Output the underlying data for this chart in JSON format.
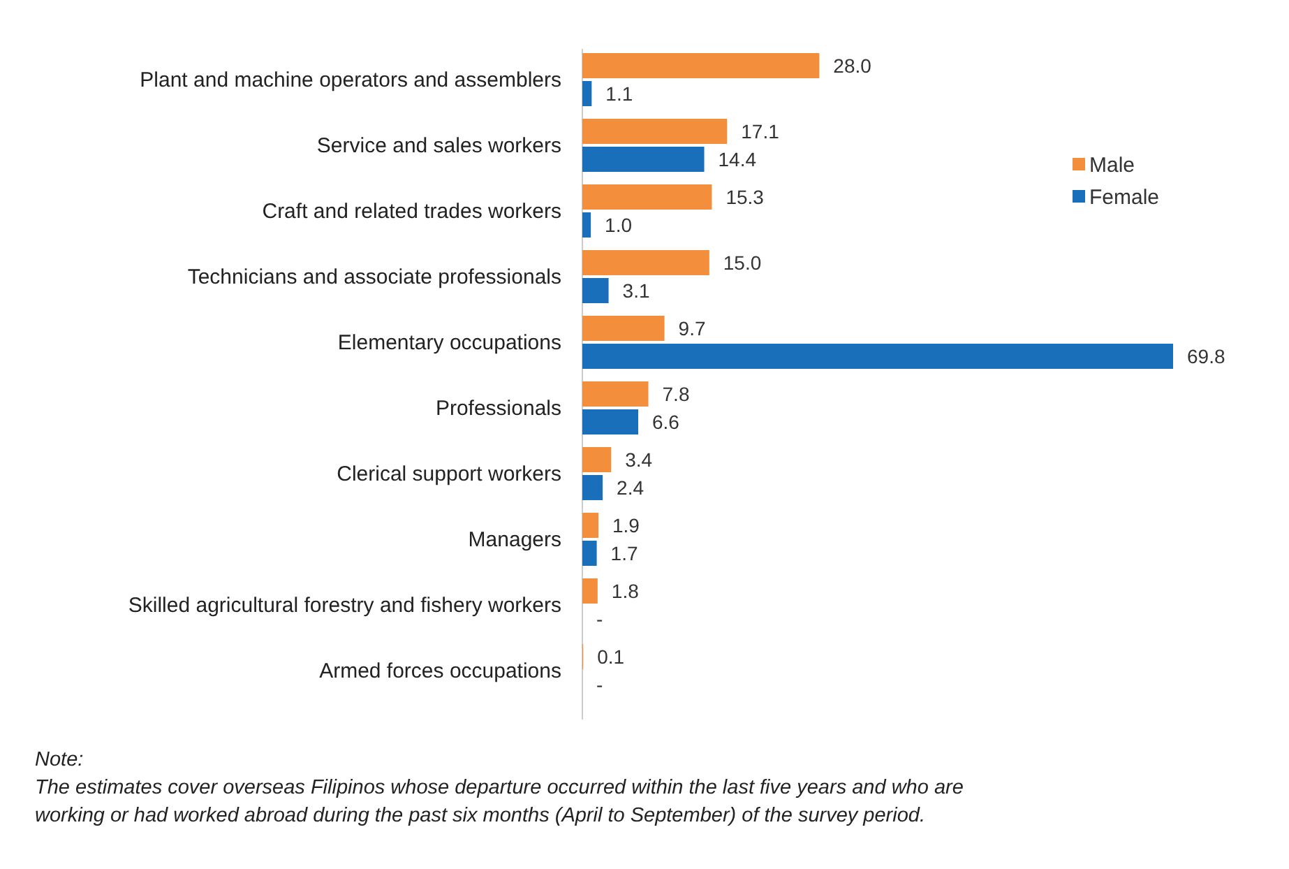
{
  "chart_data": {
    "type": "bar",
    "orientation": "horizontal",
    "categories": [
      "Plant and machine operators and assemblers",
      "Service and sales workers",
      "Craft and related trades workers",
      "Technicians and associate professionals",
      "Elementary occupations",
      "Professionals",
      "Clerical support workers",
      "Managers",
      "Skilled agricultural forestry and fishery workers",
      "Armed forces occupations"
    ],
    "series": [
      {
        "name": "Male",
        "color": "#f28e3c",
        "values": [
          28.0,
          17.1,
          15.3,
          15.0,
          9.7,
          7.8,
          3.4,
          1.9,
          1.8,
          0.1
        ],
        "value_labels": [
          "28.0",
          "17.1",
          "15.3",
          "15.0",
          "9.7",
          "7.8",
          "3.4",
          "1.9",
          "1.8",
          "0.1"
        ]
      },
      {
        "name": "Female",
        "color": "#1a6fba",
        "values": [
          1.1,
          14.4,
          1.0,
          3.1,
          69.8,
          6.6,
          2.4,
          1.7,
          null,
          null
        ],
        "value_labels": [
          "1.1",
          "14.4",
          "1.0",
          "3.1",
          "69.8",
          "6.6",
          "2.4",
          "1.7",
          "-",
          "-"
        ]
      }
    ],
    "legend": "right",
    "annotations": [
      "Note:",
      "The estimates cover overseas Filipinos whose departure occurred within the last five years and who are",
      "working or had worked abroad during the past six months (April to September) of the survey period."
    ]
  }
}
